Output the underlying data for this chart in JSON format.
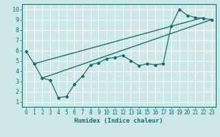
{
  "title": "",
  "xlabel": "Humidex (Indice chaleur)",
  "bg_color": "#cce8e8",
  "line_color": "#1a6b6b",
  "grid_color": "#ffffff",
  "xlim": [
    -0.5,
    23.5
  ],
  "ylim": [
    0.5,
    10.5
  ],
  "x_ticks": [
    0,
    1,
    2,
    3,
    4,
    5,
    6,
    7,
    8,
    9,
    10,
    11,
    12,
    13,
    14,
    15,
    16,
    17,
    18,
    19,
    20,
    21,
    22,
    23
  ],
  "y_ticks": [
    1,
    2,
    3,
    4,
    5,
    6,
    7,
    8,
    9,
    10
  ],
  "zigzag_x": [
    0,
    1,
    2,
    3,
    4,
    5,
    6,
    7,
    8,
    9,
    10,
    11,
    12,
    13,
    14,
    15,
    16,
    17,
    18,
    19,
    20,
    21,
    22,
    23
  ],
  "zigzag_y": [
    5.9,
    4.7,
    3.3,
    3.1,
    1.4,
    1.5,
    2.7,
    3.5,
    4.6,
    4.8,
    5.2,
    5.3,
    5.5,
    5.0,
    4.5,
    4.7,
    4.6,
    4.7,
    8.4,
    10.0,
    9.4,
    9.2,
    9.1,
    9.0
  ],
  "line1_x": [
    1,
    22
  ],
  "line1_y": [
    4.7,
    9.2
  ],
  "line2_x": [
    2,
    23
  ],
  "line2_y": [
    3.3,
    9.0
  ],
  "xlabel_fontsize": 6.5,
  "tick_fontsize": 5.5
}
